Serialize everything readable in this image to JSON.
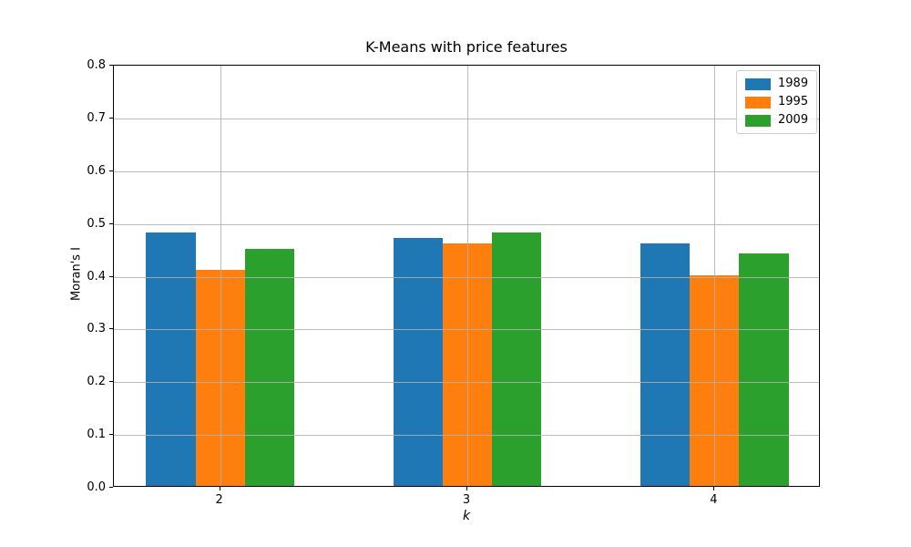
{
  "chart_data": {
    "type": "bar",
    "title": "K-Means with price features",
    "xlabel": "k",
    "ylabel": "Moran's I",
    "categories": [
      "2",
      "3",
      "4"
    ],
    "series": [
      {
        "name": "1989",
        "color": "#1f77b4",
        "values": [
          0.48,
          0.47,
          0.46
        ]
      },
      {
        "name": "1995",
        "color": "#ff7f0e",
        "values": [
          0.41,
          0.46,
          0.4
        ]
      },
      {
        "name": "2009",
        "color": "#2ca02c",
        "values": [
          0.45,
          0.48,
          0.44
        ]
      }
    ],
    "ylim": [
      0.0,
      0.8
    ],
    "yticks": [
      0.0,
      0.1,
      0.2,
      0.3,
      0.4,
      0.5,
      0.6,
      0.7,
      0.8
    ],
    "xlim": [
      -0.43,
      2.43
    ],
    "bar_width": 0.2,
    "grid": true,
    "grid_color": "#b0b0b0",
    "legend_position": "upper right",
    "background": "#ffffff"
  }
}
